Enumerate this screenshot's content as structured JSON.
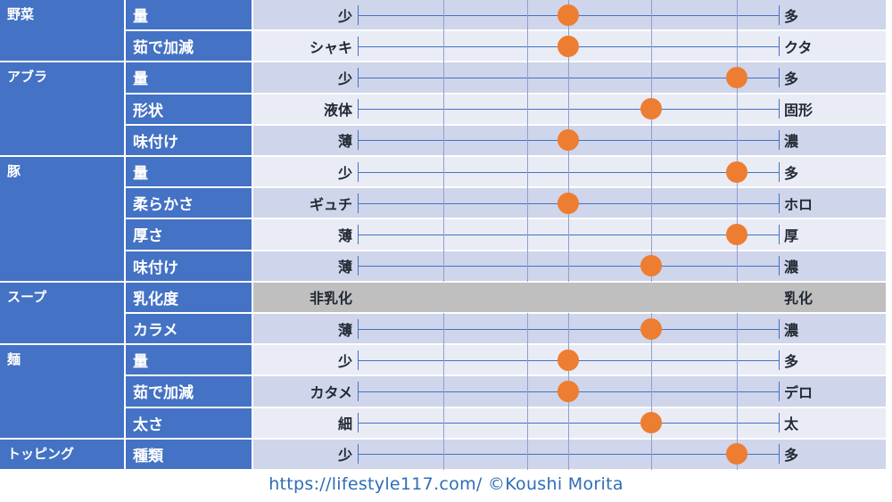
{
  "colors": {
    "header_blue": "#4472c4",
    "dot_orange": "#ed7d31",
    "row_light": "#e9ebf5",
    "row_mid": "#cfd5ea",
    "row_gray": "#bfbfbf"
  },
  "categories": [
    {
      "name": "野菜",
      "attributes": [
        {
          "name": "量",
          "left": "少",
          "right": "多",
          "value": 2,
          "has_dot": true
        },
        {
          "name": "茹で加減",
          "left": "シャキ",
          "right": "クタ",
          "value": 2,
          "has_dot": true
        }
      ]
    },
    {
      "name": "アブラ",
      "attributes": [
        {
          "name": "量",
          "left": "少",
          "right": "多",
          "value": 4,
          "has_dot": true
        },
        {
          "name": "形状",
          "left": "液体",
          "right": "固形",
          "value": 3,
          "has_dot": true
        },
        {
          "name": "味付け",
          "left": "薄",
          "right": "濃",
          "value": 2,
          "has_dot": true
        }
      ]
    },
    {
      "name": "豚",
      "attributes": [
        {
          "name": "量",
          "left": "少",
          "right": "多",
          "value": 4,
          "has_dot": true
        },
        {
          "name": "柔らかさ",
          "left": "ギュチ",
          "right": "ホロ",
          "value": 2,
          "has_dot": true
        },
        {
          "name": "厚さ",
          "left": "薄",
          "right": "厚",
          "value": 4,
          "has_dot": true
        },
        {
          "name": "味付け",
          "left": "薄",
          "right": "濃",
          "value": 3,
          "has_dot": true
        }
      ]
    },
    {
      "name": "スープ",
      "attributes": [
        {
          "name": "乳化度",
          "left": "非乳化",
          "right": "乳化",
          "value": null,
          "has_dot": false
        },
        {
          "name": "カラメ",
          "left": "薄",
          "right": "濃",
          "value": 3,
          "has_dot": true
        }
      ]
    },
    {
      "name": "麺",
      "attributes": [
        {
          "name": "量",
          "left": "少",
          "right": "多",
          "value": 2,
          "has_dot": true
        },
        {
          "name": "茹で加減",
          "left": "カタメ",
          "right": "デロ",
          "value": 2,
          "has_dot": true
        },
        {
          "name": "太さ",
          "left": "細",
          "right": "太",
          "value": 3,
          "has_dot": true
        }
      ]
    },
    {
      "name": "トッピング",
      "attributes": [
        {
          "name": "種類",
          "left": "少",
          "right": "多",
          "value": 4,
          "has_dot": true
        }
      ]
    }
  ],
  "footer": {
    "text": "https://lifestyle117.com/  ©Koushi Morita"
  }
}
